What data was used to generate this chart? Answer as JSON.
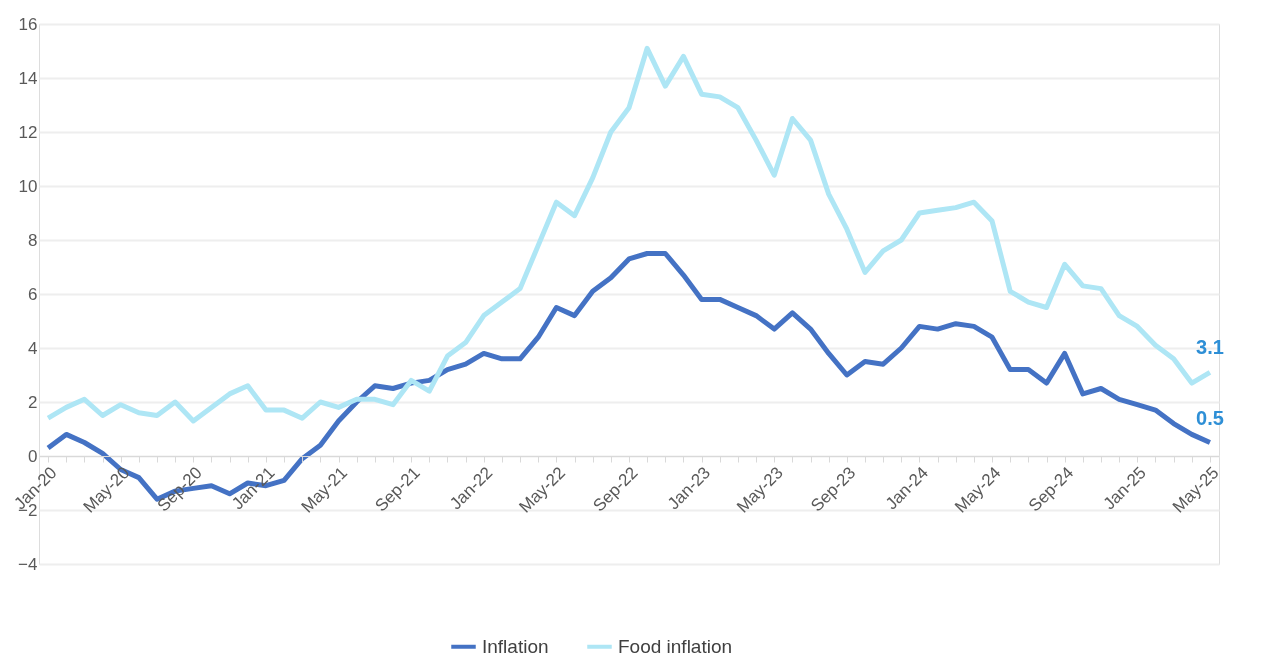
{
  "chart_data": {
    "type": "line",
    "categories": [
      "Jan-20",
      null,
      null,
      null,
      "May-20",
      null,
      null,
      null,
      "Sep-20",
      null,
      null,
      null,
      "Jan-21",
      null,
      null,
      null,
      "May-21",
      null,
      null,
      null,
      "Sep-21",
      null,
      null,
      null,
      "Jan-22",
      null,
      null,
      null,
      "May-22",
      null,
      null,
      null,
      "Sep-22",
      null,
      null,
      null,
      "Jan-23",
      null,
      null,
      null,
      "May-23",
      null,
      null,
      null,
      "Sep-23",
      null,
      null,
      null,
      "Jan-24",
      null,
      null,
      null,
      "May-24",
      null,
      null,
      null,
      "Sep-24",
      null,
      null,
      null,
      "Jan-25",
      null,
      null,
      null,
      "May-25"
    ],
    "series": [
      {
        "name": "Inflation",
        "color": "#4472c4",
        "values": [
          0.3,
          0.8,
          0.5,
          0.1,
          -0.5,
          -0.8,
          -1.6,
          -1.3,
          -1.2,
          -1.1,
          -1.4,
          -1.0,
          -1.1,
          -0.9,
          -0.1,
          0.4,
          1.3,
          2.0,
          2.6,
          2.5,
          2.7,
          2.8,
          3.2,
          3.4,
          3.8,
          3.6,
          3.6,
          4.4,
          5.5,
          5.2,
          6.1,
          6.6,
          7.3,
          7.5,
          7.5,
          6.7,
          5.8,
          5.8,
          5.5,
          5.2,
          4.7,
          5.3,
          4.7,
          3.8,
          3.0,
          3.5,
          3.4,
          4.0,
          4.8,
          4.7,
          4.9,
          4.8,
          4.4,
          3.2,
          3.2,
          2.7,
          3.8,
          2.3,
          2.5,
          2.1,
          1.9,
          1.7,
          1.2,
          0.8,
          0.5
        ]
      },
      {
        "name": "Food inflation",
        "color": "#aee6f5",
        "values": [
          1.4,
          1.8,
          2.1,
          1.5,
          1.9,
          1.6,
          1.5,
          2.0,
          1.3,
          1.8,
          2.3,
          2.6,
          1.7,
          1.7,
          1.4,
          2.0,
          1.8,
          2.1,
          2.1,
          1.9,
          2.8,
          2.4,
          3.7,
          4.2,
          5.2,
          5.7,
          6.2,
          7.8,
          9.4,
          8.9,
          10.3,
          12.0,
          12.9,
          15.1,
          13.7,
          14.8,
          13.4,
          13.3,
          12.9,
          11.7,
          10.4,
          12.5,
          11.7,
          9.7,
          8.4,
          6.8,
          7.6,
          8.0,
          9.0,
          9.1,
          9.2,
          9.4,
          8.7,
          6.1,
          5.7,
          5.5,
          7.1,
          6.3,
          6.2,
          5.2,
          4.8,
          4.1,
          3.6,
          2.7,
          3.1
        ]
      }
    ],
    "annotations": [
      "3.1",
      "0.5"
    ],
    "ylim": [
      -4,
      16
    ],
    "yticks": [
      -4,
      -2,
      0,
      2,
      4,
      6,
      8,
      10,
      12,
      14,
      16
    ],
    "grid": "y",
    "legend": "bottom",
    "marker": "none",
    "line_style": "solid"
  }
}
